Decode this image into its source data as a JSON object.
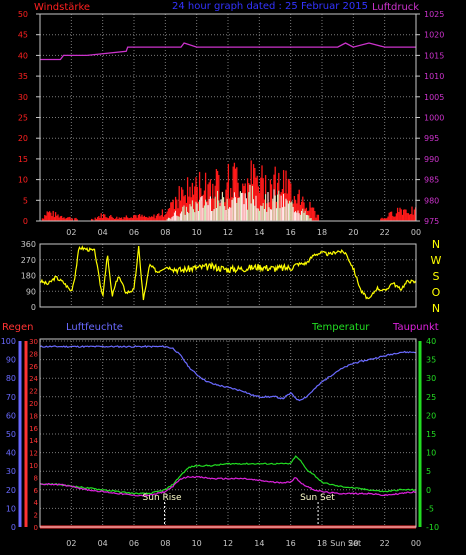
{
  "colors": {
    "background": "#000000",
    "grid": "#7a7a7a",
    "frame": "#c8c8c8",
    "wind_axis": "#ff2020",
    "pressure": "#cc33cc",
    "title": "#3333ff",
    "wind_speed": "#ff1a1a",
    "wind_avg": "#ccffcc",
    "wind_avg_fill": "#ffffff",
    "direction": "#ffff00",
    "rain": "#ff3333",
    "humidity": "#6a6aff",
    "temperature": "#22dd22",
    "dewpoint": "#dd22dd",
    "sun_marker": "#ffffff",
    "sun_text": "#ffffcc"
  },
  "header": {
    "wind_label": "Windstärke",
    "title": "24 hour graph dated : 25 Februar 2015",
    "pressure_label": "Luftdruck"
  },
  "x_axis": {
    "ticks": [
      "02",
      "04",
      "06",
      "08",
      "10",
      "12",
      "14",
      "16",
      "18",
      "20",
      "22",
      "00"
    ],
    "bottom_ticks": [
      "02",
      "04",
      "06",
      "08",
      "10",
      "12",
      "14",
      "16",
      "18",
      "Sun Set",
      "20",
      "22",
      "00"
    ]
  },
  "chart_data": [
    {
      "type": "bar",
      "panel": "wind",
      "left_axis": {
        "label": "Windstärke",
        "ticks": [
          "0",
          "5",
          "10",
          "15",
          "20",
          "25",
          "30",
          "35",
          "40",
          "45",
          "50"
        ],
        "ylim": [
          0,
          50
        ]
      },
      "right_axis": {
        "label": "Luftdruck",
        "ticks": [
          "975",
          "980",
          "985",
          "990",
          "995",
          "1000",
          "1005",
          "1010",
          "1015",
          "1020",
          "1025"
        ],
        "ylim": [
          975,
          1025
        ]
      },
      "x_range_hours": [
        0,
        24
      ],
      "pressure": {
        "x": [
          0,
          0.5,
          1.3,
          1.5,
          3.0,
          5.5,
          5.6,
          9.0,
          9.2,
          10.0,
          12.0,
          17.0,
          19.0,
          19.5,
          20.0,
          21.0,
          22.0,
          24.0
        ],
        "y": [
          1014,
          1014,
          1014,
          1015,
          1015,
          1016,
          1017,
          1017,
          1018,
          1017,
          1017,
          1017,
          1017,
          1018,
          1017,
          1018,
          1017,
          1017
        ]
      },
      "wind_gust_envelope": {
        "x": [
          0,
          0.5,
          1,
          2,
          3,
          4,
          5,
          6,
          7,
          7.5,
          8,
          8.5,
          9,
          9.5,
          10,
          10.5,
          11,
          11.5,
          12,
          12.5,
          13,
          13.5,
          14,
          14.5,
          15,
          15.5,
          16,
          16.5,
          17,
          17.5,
          18,
          19,
          20,
          21,
          22,
          23,
          24
        ],
        "y": [
          0,
          3,
          2,
          1,
          0,
          2,
          1,
          2,
          1,
          2,
          3,
          7,
          9,
          10,
          11,
          12,
          13,
          12,
          13,
          14,
          13,
          14,
          13,
          12,
          13,
          12,
          10,
          9,
          6,
          3,
          0,
          0,
          0,
          0,
          1,
          4,
          3
        ]
      },
      "wind_avg_envelope": {
        "x": [
          0,
          8,
          8.5,
          9,
          9.5,
          10,
          10.5,
          11,
          11.5,
          12,
          12.5,
          13,
          13.5,
          14,
          14.5,
          15,
          15.5,
          16,
          16.5,
          17,
          17.5,
          24
        ],
        "y": [
          0,
          0,
          2,
          3,
          4,
          5,
          6,
          7,
          6,
          7,
          8,
          7,
          8,
          7,
          6,
          7,
          6,
          5,
          4,
          2,
          0,
          0
        ]
      }
    },
    {
      "type": "line",
      "panel": "wind_direction",
      "left_axis": {
        "ticks": [
          "0",
          "90",
          "180",
          "270",
          "360"
        ],
        "ylim": [
          0,
          360
        ]
      },
      "right_labels": [
        "N",
        "W",
        "S",
        "O",
        "N"
      ],
      "x_range_hours": [
        0,
        24
      ],
      "direction": {
        "x": [
          0,
          0.5,
          1,
          1.5,
          2,
          2.2,
          2.5,
          3,
          3.5,
          3.8,
          4,
          4.3,
          4.6,
          5,
          5.5,
          6,
          6.3,
          6.6,
          7,
          7.5,
          8,
          8.5,
          9,
          10,
          11,
          12,
          13,
          14,
          15,
          16,
          16.5,
          17,
          17.5,
          18,
          18.5,
          19,
          19.5,
          20,
          20.5,
          21,
          21.5,
          22,
          22.5,
          23,
          23.5,
          24
        ],
        "y": [
          150,
          130,
          170,
          140,
          90,
          160,
          340,
          330,
          320,
          150,
          60,
          300,
          60,
          180,
          80,
          100,
          340,
          40,
          240,
          200,
          230,
          220,
          210,
          225,
          230,
          215,
          220,
          230,
          220,
          225,
          245,
          250,
          300,
          310,
          300,
          320,
          310,
          220,
          90,
          40,
          110,
          90,
          140,
          100,
          150,
          140
        ]
      }
    },
    {
      "type": "line",
      "panel": "climate",
      "labels": {
        "rain": "Regen",
        "humidity": "Luftfeuchte",
        "temperature": "Temperatur",
        "dewpoint": "Taupunkt"
      },
      "left_axis_humidity": {
        "ticks": [
          "0",
          "10",
          "20",
          "30",
          "40",
          "50",
          "60",
          "70",
          "80",
          "90",
          "100"
        ],
        "ylim": [
          0,
          100
        ]
      },
      "left_axis_rain": {
        "ticks": [
          "0",
          "2",
          "4",
          "6",
          "8",
          "10",
          "12",
          "14",
          "16",
          "18",
          "20",
          "22",
          "24",
          "26",
          "28",
          "30"
        ],
        "ylim": [
          0,
          30
        ]
      },
      "right_axis_temperature": {
        "ticks": [
          "-10",
          "-5",
          "0",
          "5",
          "10",
          "15",
          "20",
          "25",
          "30",
          "35",
          "40"
        ],
        "ylim": [
          -10,
          40
        ]
      },
      "x_range_hours": [
        0,
        24
      ],
      "annotations": [
        "Sun Rise",
        "Sun Set"
      ],
      "sun_rise_hour": 7.95,
      "sun_set_hour": 17.75,
      "humidity": {
        "x": [
          0,
          1,
          2,
          3,
          4,
          5,
          6,
          7,
          8,
          8.5,
          9,
          9.5,
          10,
          10.5,
          11,
          11.5,
          12,
          12.5,
          13,
          13.5,
          14,
          14.5,
          15,
          15.5,
          16,
          16.5,
          17,
          17.5,
          18,
          19,
          20,
          21,
          22,
          23,
          24
        ],
        "y": [
          97,
          97,
          97,
          97,
          97,
          97,
          97,
          97,
          97,
          96,
          92,
          86,
          82,
          79,
          77,
          76,
          75,
          74,
          73,
          71,
          70,
          70,
          70,
          69,
          72,
          68,
          70,
          74,
          78,
          84,
          88,
          90,
          92,
          94,
          94
        ]
      },
      "temperature": {
        "x": [
          0,
          1,
          2,
          3,
          4,
          5,
          6,
          7,
          8,
          8.5,
          9,
          9.5,
          10,
          11,
          12,
          13,
          14,
          15,
          16,
          16.3,
          16.6,
          17,
          17.5,
          18,
          19,
          20,
          21,
          22,
          23,
          24
        ],
        "y": [
          1.5,
          1.5,
          1,
          0.5,
          0,
          -0.5,
          -1,
          -1,
          0,
          1.5,
          4,
          6,
          6.5,
          6.5,
          7,
          7,
          7,
          7,
          7,
          9,
          8,
          5.5,
          4,
          2,
          1,
          0.5,
          0,
          -0.5,
          0,
          0
        ]
      },
      "dewpoint": {
        "x": [
          0,
          1,
          2,
          3,
          4,
          5,
          6,
          7,
          8,
          8.5,
          9,
          9.5,
          10,
          11,
          12,
          13,
          14,
          15,
          16,
          16.3,
          16.6,
          17,
          17.5,
          18,
          19,
          20,
          21,
          22,
          23,
          24
        ],
        "y": [
          1.5,
          1.5,
          1,
          0,
          -0.5,
          -1,
          -1.5,
          -1.5,
          -0.5,
          1,
          3,
          3.5,
          3.5,
          3,
          3,
          3,
          2.5,
          2,
          2,
          3.5,
          2,
          1,
          0,
          -0.5,
          -1,
          -1,
          -1,
          -1.5,
          -1,
          -0.5
        ]
      },
      "rain": {
        "x": [
          0,
          24
        ],
        "y": [
          0,
          0
        ]
      }
    }
  ]
}
